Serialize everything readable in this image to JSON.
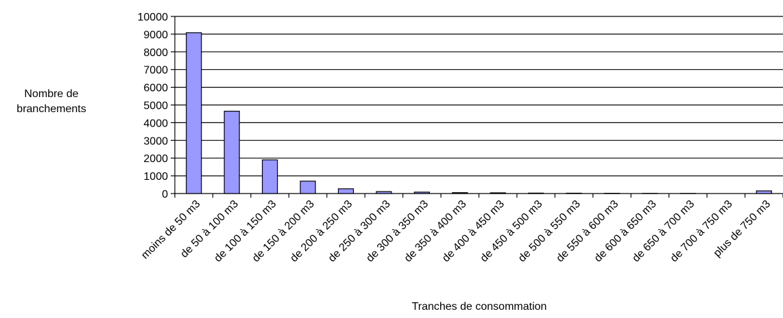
{
  "chart_data": {
    "type": "bar",
    "title": "",
    "xlabel": "Tranches de consommation",
    "ylabel_lines": [
      "Nombre de",
      "branchements"
    ],
    "categories": [
      "moins de 50 m3",
      "de 50 à 100 m3",
      "de 100 à 150 m3",
      "de 150 à 200 m3",
      "de 200 à 250 m3",
      "de 250 à 300 m3",
      "de 300 à 350 m3",
      "de 350 à 400 m3",
      "de 400 à 450 m3",
      "de 450 à 500 m3",
      "de 500 à 550 m3",
      "de 550 à 600 m3",
      "de 600 à 650 m3",
      "de 650 à 700 m3",
      "de 700 à 750 m3",
      "plus de 750 m3"
    ],
    "values": [
      9080,
      4650,
      1900,
      700,
      270,
      110,
      80,
      50,
      40,
      25,
      20,
      15,
      10,
      8,
      0,
      150
    ],
    "yticks": [
      "0",
      "1000",
      "2000",
      "3000",
      "4000",
      "5000",
      "6000",
      "7000",
      "8000",
      "9000",
      "10000"
    ],
    "ylim": [
      0,
      10000
    ],
    "grid": true,
    "legend": "none",
    "bar_color": "#9999ff",
    "bar_stroke": "#000000"
  }
}
